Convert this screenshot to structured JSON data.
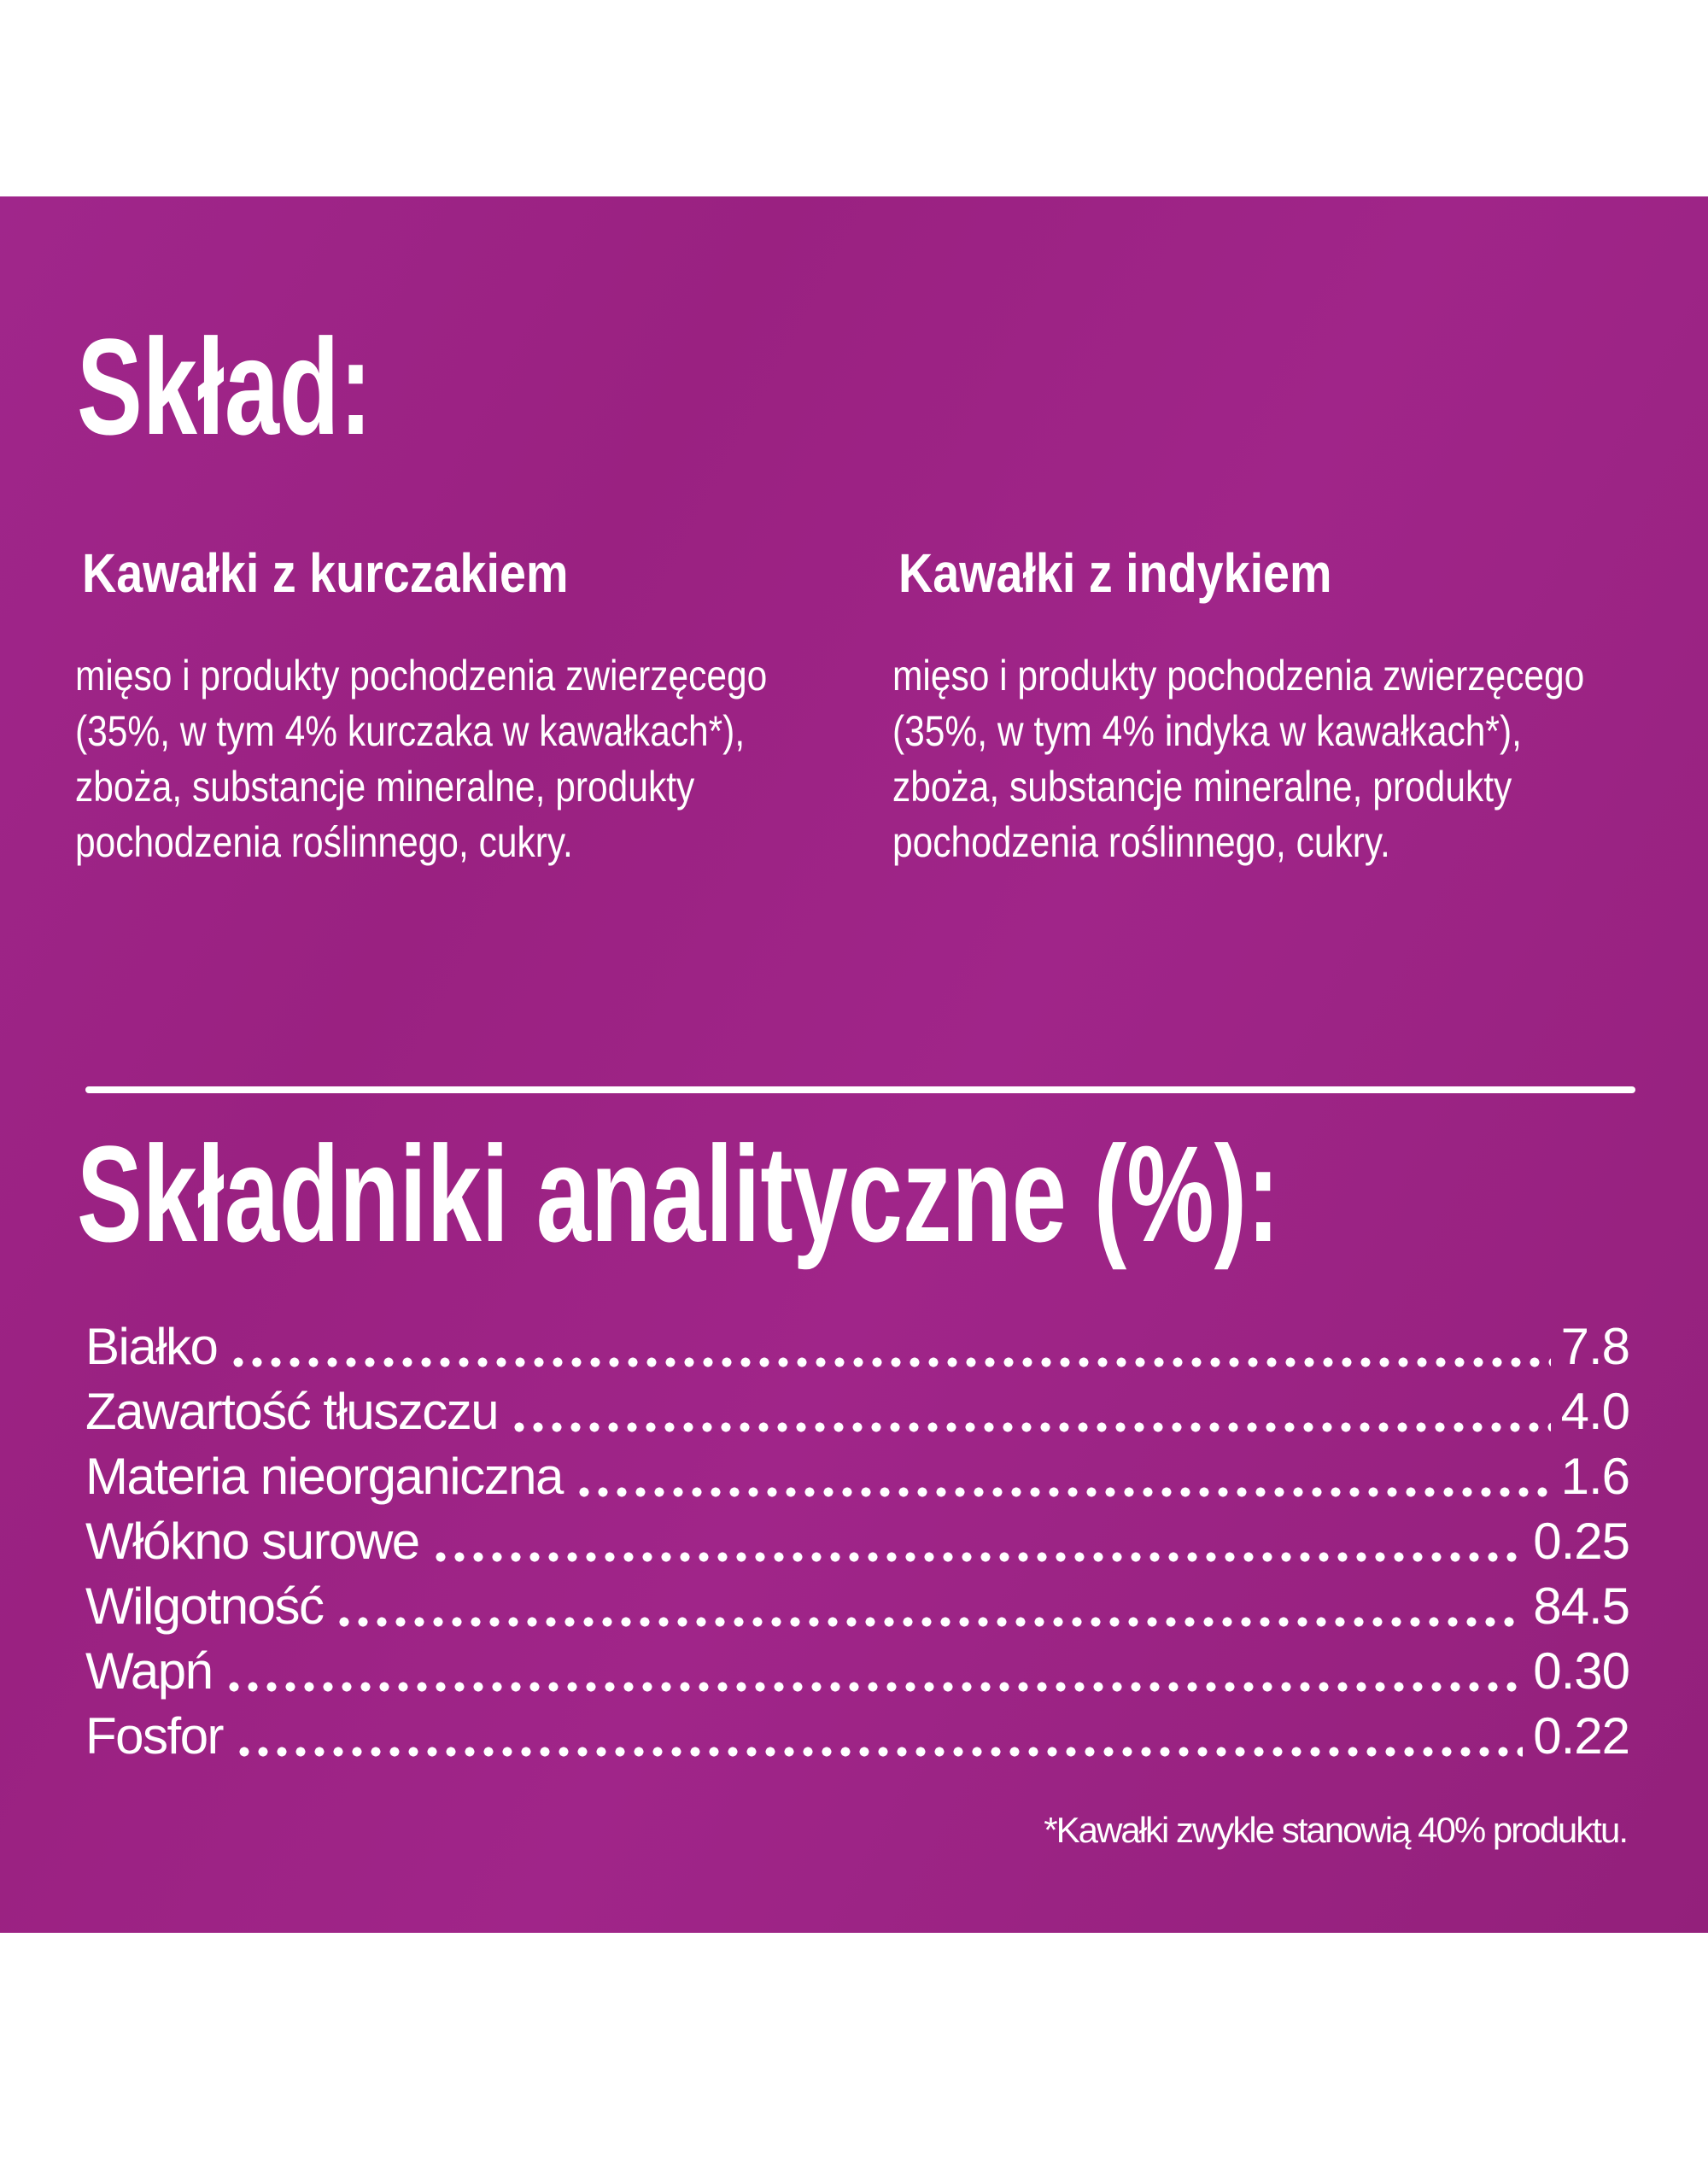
{
  "page": {
    "background": "#ffffff",
    "panel_color": "#9b2383",
    "panel_gradient_light": "#a0268b",
    "panel_gradient_dark": "#93207b",
    "text_color": "#ffffff"
  },
  "sklad": {
    "title": "Skład:",
    "columns": [
      {
        "heading": "Kawałki z kurczakiem",
        "body": "mięso i produkty pochodzenia zwierzęcego\n(35%, w tym 4% kurczaka w kawałkach*),\nzboża, substancje mineralne, produkty\npochodzenia roślinnego, cukry."
      },
      {
        "heading": "Kawałki z indykiem",
        "body": "mięso i produkty pochodzenia zwierzęcego\n(35%, w tym 4% indyka w kawałkach*),\nzboża, substancje mineralne, produkty\npochodzenia roślinnego, cukry."
      }
    ]
  },
  "analytical": {
    "title": "Składniki analityczne (%):",
    "rows": [
      {
        "label": "Białko",
        "value": "7.8"
      },
      {
        "label": "Zawartość tłuszczu",
        "value": "4.0"
      },
      {
        "label": "Materia nieorganiczna",
        "value": "1.6"
      },
      {
        "label": "Włókno surowe",
        "value": "0.25"
      },
      {
        "label": "Wilgotność",
        "value": "84.5"
      },
      {
        "label": "Wapń",
        "value": "0.30"
      },
      {
        "label": "Fosfor",
        "value": "0.22"
      }
    ],
    "footnote": "*Kawałki zwykle stanowią 40% produktu."
  }
}
